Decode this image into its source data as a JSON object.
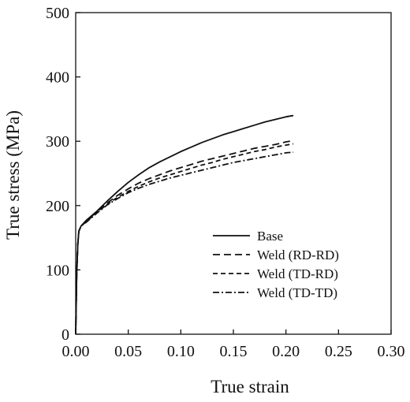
{
  "chart_data": {
    "type": "line",
    "title": "",
    "xlabel": "True strain",
    "ylabel": "True stress (MPa)",
    "xlim": [
      0,
      0.3
    ],
    "ylim": [
      0,
      500
    ],
    "x_ticks": [
      "0.00",
      "0.05",
      "0.10",
      "0.15",
      "0.20",
      "0.25",
      "0.30"
    ],
    "y_ticks": [
      "0",
      "100",
      "200",
      "300",
      "400",
      "500"
    ],
    "grid": false,
    "legend_position": "lower-right",
    "series": [
      {
        "name": "Base",
        "style": "solid",
        "x": [
          0,
          0.001,
          0.002,
          0.003,
          0.005,
          0.01,
          0.02,
          0.03,
          0.04,
          0.05,
          0.06,
          0.07,
          0.08,
          0.09,
          0.1,
          0.11,
          0.12,
          0.13,
          0.14,
          0.15,
          0.16,
          0.17,
          0.18,
          0.19,
          0.2,
          0.207
        ],
        "y": [
          0,
          95,
          140,
          160,
          168,
          177,
          191,
          207,
          222,
          236,
          248,
          259,
          268,
          276,
          284,
          291,
          298,
          304,
          310,
          315,
          320,
          325,
          330,
          334,
          338,
          340
        ]
      },
      {
        "name": "Weld (RD-RD)",
        "style": "dashed",
        "x": [
          0,
          0.001,
          0.002,
          0.003,
          0.005,
          0.01,
          0.02,
          0.03,
          0.04,
          0.05,
          0.06,
          0.07,
          0.08,
          0.09,
          0.1,
          0.11,
          0.12,
          0.13,
          0.14,
          0.15,
          0.16,
          0.17,
          0.18,
          0.19,
          0.2,
          0.207
        ],
        "y": [
          0,
          95,
          140,
          160,
          168,
          176,
          190,
          204,
          216,
          226,
          235,
          242,
          248,
          254,
          259,
          264,
          269,
          273,
          277,
          281,
          285,
          289,
          292,
          295,
          299,
          301
        ]
      },
      {
        "name": "Weld (TD-RD)",
        "style": "short-dashed",
        "x": [
          0,
          0.001,
          0.002,
          0.003,
          0.005,
          0.01,
          0.02,
          0.03,
          0.04,
          0.05,
          0.06,
          0.07,
          0.08,
          0.09,
          0.1,
          0.11,
          0.12,
          0.13,
          0.14,
          0.15,
          0.16,
          0.17,
          0.18,
          0.19,
          0.2,
          0.207
        ],
        "y": [
          0,
          95,
          140,
          160,
          168,
          175,
          189,
          202,
          213,
          222,
          230,
          237,
          243,
          248,
          253,
          258,
          263,
          267,
          272,
          276,
          280,
          284,
          287,
          291,
          294,
          296
        ]
      },
      {
        "name": "Weld (TD-TD)",
        "style": "dash-dot",
        "x": [
          0,
          0.001,
          0.002,
          0.003,
          0.005,
          0.01,
          0.02,
          0.03,
          0.04,
          0.05,
          0.06,
          0.07,
          0.08,
          0.09,
          0.1,
          0.11,
          0.12,
          0.13,
          0.14,
          0.15,
          0.16,
          0.17,
          0.18,
          0.19,
          0.2,
          0.207
        ],
        "y": [
          0,
          95,
          140,
          160,
          168,
          174,
          188,
          201,
          211,
          220,
          227,
          233,
          238,
          243,
          247,
          251,
          255,
          259,
          263,
          267,
          270,
          273,
          276,
          279,
          282,
          283
        ]
      }
    ]
  }
}
